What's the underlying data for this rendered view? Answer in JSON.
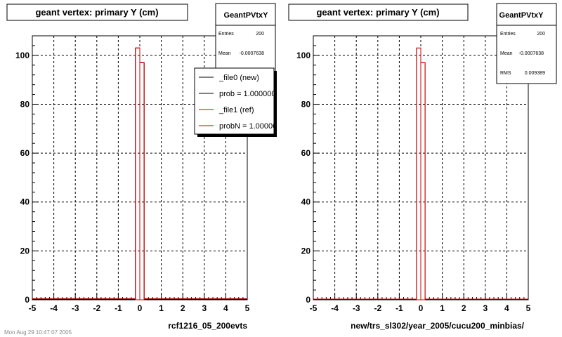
{
  "colors": {
    "new": "#000000",
    "ref": "#cc0000",
    "grid": "#000000",
    "frame": "#000000"
  },
  "footer": "Mon Aug 29 10:47:07 2005",
  "chart_data": [
    {
      "type": "bar",
      "title": "geant vertex: primary Y (cm)",
      "xlabel": "rcf1216_05_200evts",
      "ylabel": "",
      "xlim": [
        -5,
        5
      ],
      "ylim": [
        0,
        108
      ],
      "xticks": [
        -5,
        -4,
        -3,
        -2,
        -1,
        0,
        1,
        2,
        3,
        4,
        5
      ],
      "yticks": [
        0,
        20,
        40,
        60,
        80,
        100
      ],
      "grid": true,
      "series": [
        {
          "name": "_file0 (new)",
          "color": "#000000",
          "bins": [
            [
              -0.2,
              0.0,
              103
            ],
            [
              0.0,
              0.2,
              97
            ]
          ]
        },
        {
          "name": "_file1 (ref)",
          "color": "#cc0000",
          "bins": [
            [
              -0.2,
              0.0,
              103
            ],
            [
              0.0,
              0.2,
              97
            ]
          ]
        }
      ],
      "stats": {
        "name": "GeantPVtxY",
        "rows": [
          {
            "label": "Entries",
            "value": "200"
          },
          {
            "label": "Mean",
            "value": "-0.0007638"
          }
        ]
      },
      "legend": {
        "placement": "top-right",
        "entries": [
          {
            "text": "_file0 (new)",
            "color": "#000000"
          },
          {
            "text": "prob = 1.000000",
            "color": "#000000"
          },
          {
            "text": "_file1 (ref)",
            "color": "#cc0000"
          },
          {
            "text": "probN = 1.000000",
            "color": "#cc0000"
          }
        ]
      }
    },
    {
      "type": "bar",
      "title": "geant vertex: primary Y (cm)",
      "xlabel": "new/trs_sl302/year_2005/cucu200_minbias/",
      "ylabel": "",
      "xlim": [
        -5,
        5
      ],
      "ylim": [
        0,
        108
      ],
      "xticks": [
        -5,
        -4,
        -3,
        -2,
        -1,
        0,
        1,
        2,
        3,
        4,
        5
      ],
      "yticks": [
        0,
        20,
        40,
        60,
        80,
        100
      ],
      "grid": true,
      "series": [
        {
          "name": "",
          "color": "#cc0000",
          "bins": [
            [
              -0.2,
              0.0,
              103
            ],
            [
              0.0,
              0.2,
              97
            ]
          ]
        }
      ],
      "stats": {
        "name": "GeantPVtxY",
        "rows": [
          {
            "label": "Entries",
            "value": "200"
          },
          {
            "label": "Mean",
            "value": "-0.0007638"
          },
          {
            "label": "RMS",
            "value": "0.009389"
          }
        ]
      }
    }
  ]
}
